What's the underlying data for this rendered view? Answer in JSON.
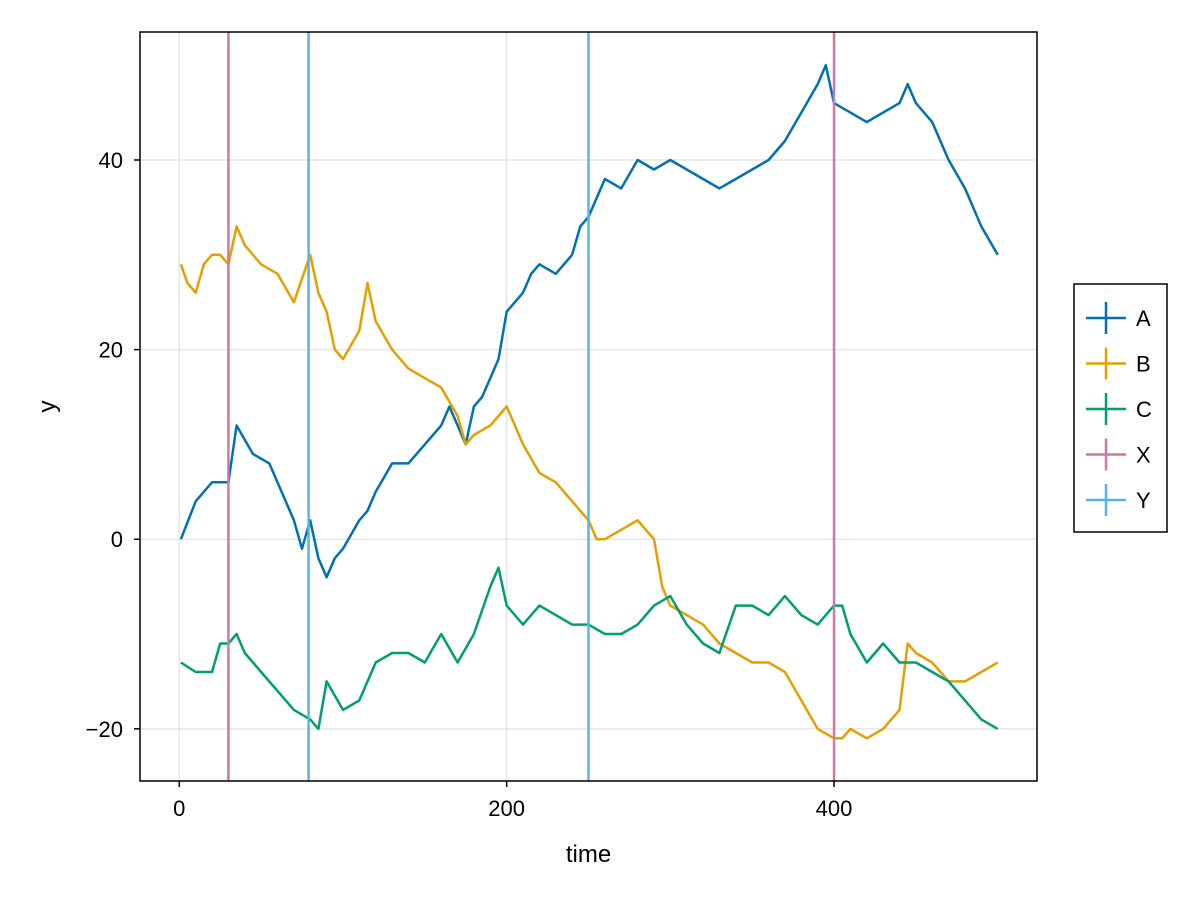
{
  "chart_data": {
    "type": "line",
    "xlabel": "time",
    "ylabel": "y",
    "xlim": [
      -24,
      524
    ],
    "ylim": [
      -25.5,
      53.5
    ],
    "x_ticks": [
      0,
      200,
      400
    ],
    "y_ticks": [
      -20,
      0,
      20,
      40
    ],
    "x_tick_labels": [
      "0",
      "200",
      "400"
    ],
    "y_tick_labels": [
      "−20",
      "0",
      "20",
      "40"
    ],
    "grid": true,
    "legend_position": "right",
    "series": [
      {
        "name": "A",
        "color": "#0072B2",
        "x": [
          1,
          10,
          20,
          30,
          35,
          45,
          55,
          65,
          70,
          75,
          80,
          85,
          90,
          95,
          100,
          110,
          115,
          120,
          130,
          140,
          150,
          160,
          165,
          170,
          175,
          180,
          185,
          190,
          195,
          200,
          210,
          215,
          220,
          230,
          240,
          245,
          250,
          255,
          260,
          270,
          280,
          290,
          300,
          310,
          320,
          330,
          340,
          350,
          360,
          370,
          380,
          390,
          395,
          400,
          410,
          420,
          430,
          440,
          445,
          450,
          460,
          470,
          480,
          490,
          500
        ],
        "y": [
          0,
          4,
          6,
          6,
          12,
          9,
          8,
          4,
          2,
          -1,
          2,
          -2,
          -4,
          -2,
          -1,
          2,
          3,
          5,
          8,
          8,
          10,
          12,
          14,
          12,
          10,
          14,
          15,
          17,
          19,
          24,
          26,
          28,
          29,
          28,
          30,
          33,
          34,
          36,
          38,
          37,
          40,
          39,
          40,
          39,
          38,
          37,
          38,
          39,
          40,
          42,
          45,
          48,
          50,
          46,
          45,
          44,
          45,
          46,
          48,
          46,
          44,
          40,
          37,
          33,
          30
        ]
      },
      {
        "name": "B",
        "color": "#E69F00",
        "x": [
          1,
          5,
          10,
          15,
          20,
          25,
          30,
          35,
          40,
          50,
          60,
          70,
          80,
          85,
          90,
          95,
          100,
          110,
          115,
          120,
          130,
          140,
          150,
          160,
          170,
          175,
          180,
          190,
          200,
          210,
          220,
          230,
          240,
          250,
          255,
          260,
          270,
          280,
          290,
          295,
          300,
          310,
          320,
          330,
          340,
          350,
          360,
          370,
          380,
          390,
          400,
          405,
          410,
          420,
          430,
          440,
          445,
          450,
          460,
          470,
          480,
          490,
          500
        ],
        "y": [
          29,
          27,
          26,
          29,
          30,
          30,
          29,
          33,
          31,
          29,
          28,
          25,
          30,
          26,
          24,
          20,
          19,
          22,
          27,
          23,
          20,
          18,
          17,
          16,
          13,
          10,
          11,
          12,
          14,
          10,
          7,
          6,
          4,
          2,
          0,
          0,
          1,
          2,
          0,
          -5,
          -7,
          -8,
          -9,
          -11,
          -12,
          -13,
          -13,
          -14,
          -17,
          -20,
          -21,
          -21,
          -20,
          -21,
          -20,
          -18,
          -11,
          -12,
          -13,
          -15,
          -15,
          -14,
          -13
        ]
      },
      {
        "name": "C",
        "color": "#009E73",
        "x": [
          1,
          10,
          20,
          25,
          30,
          35,
          40,
          50,
          60,
          70,
          80,
          85,
          90,
          100,
          110,
          120,
          130,
          140,
          150,
          160,
          170,
          180,
          190,
          195,
          200,
          210,
          220,
          230,
          240,
          250,
          260,
          270,
          280,
          290,
          300,
          310,
          320,
          330,
          340,
          350,
          360,
          370,
          380,
          390,
          400,
          405,
          410,
          420,
          430,
          440,
          450,
          460,
          470,
          480,
          490,
          500
        ],
        "y": [
          -13,
          -14,
          -14,
          -11,
          -11,
          -10,
          -12,
          -14,
          -16,
          -18,
          -19,
          -20,
          -15,
          -18,
          -17,
          -13,
          -12,
          -12,
          -13,
          -10,
          -13,
          -10,
          -5,
          -3,
          -7,
          -9,
          -7,
          -8,
          -9,
          -9,
          -10,
          -10,
          -9,
          -7,
          -6,
          -9,
          -11,
          -12,
          -7,
          -7,
          -8,
          -6,
          -8,
          -9,
          -7,
          -7,
          -10,
          -13,
          -11,
          -13,
          -13,
          -14,
          -15,
          -17,
          -19,
          -20
        ]
      },
      {
        "name": "X",
        "color": "#CC79A7",
        "vlines": [
          30,
          400
        ]
      },
      {
        "name": "Y",
        "color": "#56B4E9",
        "vlines": [
          79,
          250
        ]
      }
    ]
  }
}
